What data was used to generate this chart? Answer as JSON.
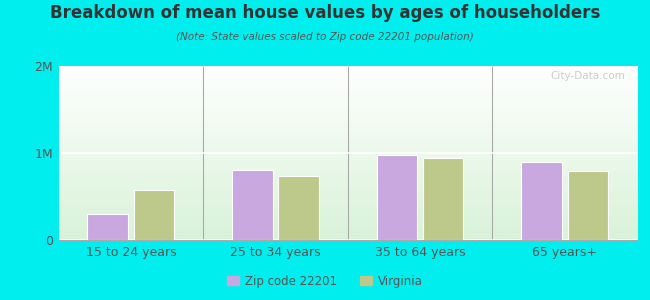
{
  "title": "Breakdown of mean house values by ages of householders",
  "subtitle": "(Note: State values scaled to Zip code 22201 population)",
  "categories": [
    "15 to 24 years",
    "25 to 34 years",
    "35 to 64 years",
    "65 years+"
  ],
  "zip_values": [
    300000,
    800000,
    975000,
    900000
  ],
  "va_values": [
    580000,
    740000,
    940000,
    790000
  ],
  "zip_color": "#c9a8e0",
  "va_color": "#bcc98a",
  "ylim": [
    0,
    2000000
  ],
  "yticks": [
    0,
    1000000,
    2000000
  ],
  "ytick_labels": [
    "0",
    "1M",
    "2M"
  ],
  "outer_bg": "#00eeee",
  "bar_width": 0.28,
  "legend_zip_label": "Zip code 22201",
  "legend_va_label": "Virginia",
  "watermark": "City-Data.com"
}
